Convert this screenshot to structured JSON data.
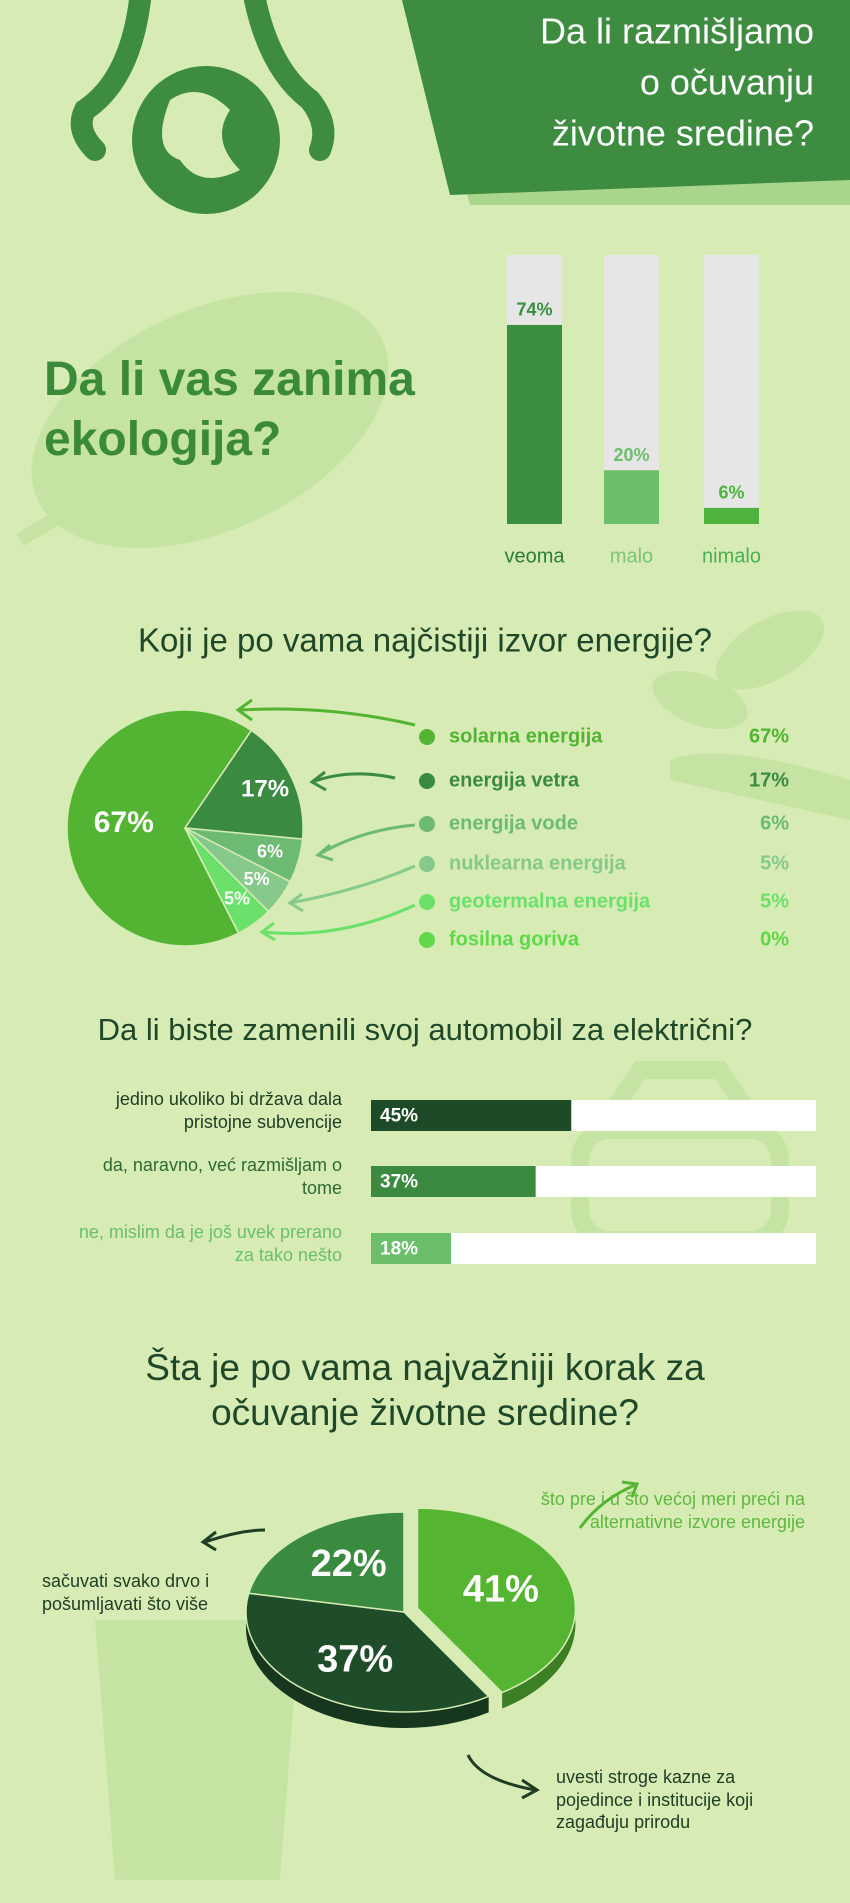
{
  "header": {
    "lines": [
      "Da li razmišljamo",
      "o očuvanju",
      "životne sredine?"
    ]
  },
  "chart_data": [
    {
      "type": "bar",
      "title": "Da li vas zanima ekologija?",
      "categories": [
        "veoma",
        "malo",
        "nimalo"
      ],
      "values": [
        74,
        20,
        6
      ],
      "value_labels": [
        "74%",
        "20%",
        "6%"
      ],
      "colors": [
        "#3a8f3f",
        "#6cbf6a",
        "#4db33d"
      ],
      "label_colors": [
        "#2f7d32",
        "#7cc47a",
        "#4caf50"
      ],
      "ylim": [
        0,
        100
      ]
    },
    {
      "type": "pie",
      "title": "Koji je po vama najčistiji izvor energije?",
      "categories": [
        "solarna energija",
        "energija vetra",
        "energija vode",
        "nuklearna energija",
        "geotermalna energija",
        "fosilna goriva"
      ],
      "values": [
        67,
        17,
        6,
        5,
        5,
        0
      ],
      "value_labels": [
        "67%",
        "17%",
        "6%",
        "5%",
        "5%",
        "0%"
      ],
      "colors": [
        "#52b432",
        "#3a8a3f",
        "#6dbb73",
        "#86c98a",
        "#6be06b",
        "#5fd84a"
      ]
    },
    {
      "type": "hbar",
      "title": "Da li biste zamenili svoj automobil za električni?",
      "categories": [
        "jedino ukoliko bi država dala pristojne subvencije",
        "da, naravno, već razmišljam o tome",
        "ne, mislim da je još uvek prerano za tako nešto"
      ],
      "values": [
        45,
        37,
        18
      ],
      "value_labels": [
        "45%",
        "37%",
        "18%"
      ],
      "colors": [
        "#1d4a27",
        "#3a8a3f",
        "#6cbf6a"
      ],
      "label_colors": [
        "#1e3d24",
        "#2d6a34",
        "#6cbf6a"
      ],
      "xlim": [
        0,
        100
      ]
    },
    {
      "type": "pie3d",
      "title": "Šta je po vama najvažniji korak za očuvanje životne sredine?",
      "categories": [
        "što pre i u što većoj meri preći na alternativne izvore energije",
        "uvesti stroge kazne za pojedince i institucije koji zagađuju prirodu",
        "sačuvati svako drvo i pošumljavati što više"
      ],
      "values": [
        41,
        37,
        22
      ],
      "value_labels": [
        "41%",
        "37%",
        "22%"
      ],
      "colors": [
        "#55b533",
        "#1f4d2a",
        "#3a8a3f"
      ],
      "label_colors": [
        "#5fb83f",
        "#1e3d24",
        "#1e3d24"
      ]
    }
  ]
}
